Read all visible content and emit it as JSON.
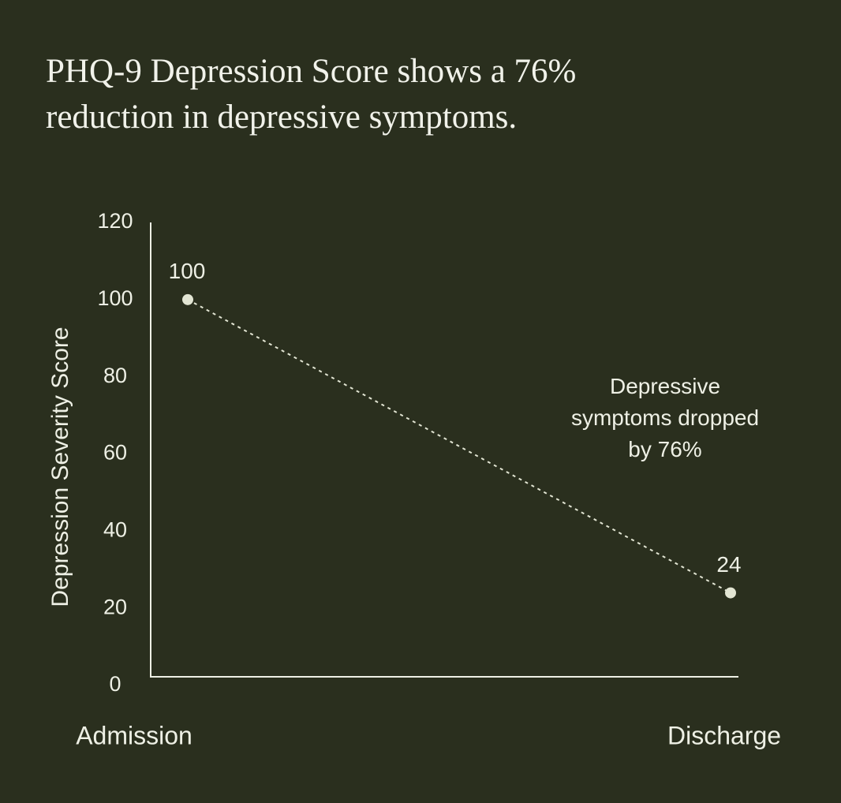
{
  "chart_data": {
    "type": "line",
    "title": "PHQ-9 Depression Score shows a 76% reduction in depressive symptoms.",
    "y_label": "Depression Severity Score",
    "annotation": "Depressive symptoms dropped by 76%",
    "categories": [
      "Admission",
      "Discharge"
    ],
    "values": [
      100,
      24
    ],
    "color": "#e2e5d3",
    "ylim": [
      0,
      120
    ],
    "yticks": [
      0,
      20,
      40,
      60,
      80,
      100,
      120
    ],
    "grid": false,
    "line_style": "dotted"
  }
}
